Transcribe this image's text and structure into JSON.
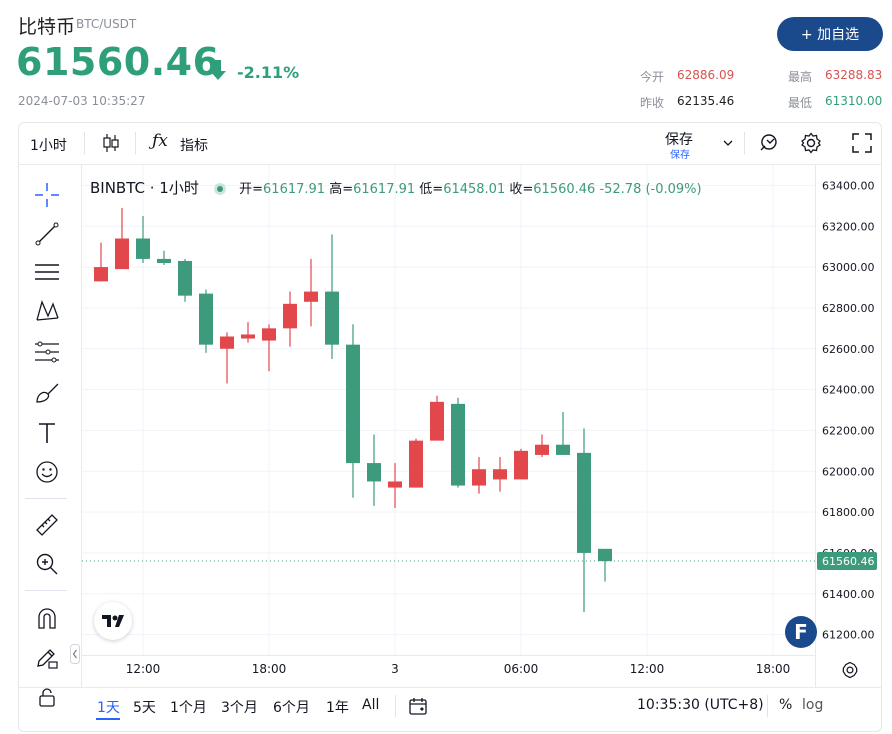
{
  "header": {
    "coin_name": "比特币",
    "pair": "BTC/USDT",
    "price": "61560.46",
    "change_pct": "-2.11%",
    "timestamp": "2024-07-03 10:35:27",
    "follow_label": "+ 加自选"
  },
  "stats": {
    "open_label": "今开",
    "open_value": "62886.09",
    "high_label": "最高",
    "high_value": "63288.83",
    "prev_close_label": "昨收",
    "prev_close_value": "62135.46",
    "low_label": "最低",
    "low_value": "61310.00"
  },
  "toolbar": {
    "interval": "1小时",
    "indicators_label": "指标",
    "save_label": "保存",
    "save_sub_label": "保存"
  },
  "legend": {
    "symbol": "BINBTC · 1小时",
    "open_label": "开=",
    "open": "61617.91",
    "high_label": "高=",
    "high": "61617.91",
    "low_label": "低=",
    "low": "61458.01",
    "close_label": "收=",
    "close": "61560.46",
    "delta": "-52.78 (-0.09%)"
  },
  "colors": {
    "up": "#e2474c",
    "down": "#3d9a7d",
    "accent": "#2962ff",
    "brand": "#1b4a8c"
  },
  "chart_data": {
    "type": "candlestick",
    "ylim": [
      61100,
      63500
    ],
    "y_ticks": [
      63400,
      63200,
      63000,
      62800,
      62600,
      62400,
      62200,
      62000,
      61800,
      61600,
      61400,
      61200
    ],
    "y_tick_labels": [
      "63400.00",
      "63200.00",
      "63000.00",
      "62800.00",
      "62600.00",
      "62400.00",
      "62200.00",
      "62000.00",
      "61800.00",
      "61600.00",
      "61400.00",
      "61200.00"
    ],
    "x_tick_labels": [
      "12:00",
      "18:00",
      "3",
      "06:00",
      "12:00",
      "18:00"
    ],
    "x_tick_index": [
      2,
      8,
      14,
      20,
      26,
      32
    ],
    "current_price_label": "61560.46",
    "current_price": 61560.46,
    "candles": [
      {
        "o": 62930,
        "h": 63120,
        "l": 62930,
        "c": 63000
      },
      {
        "o": 62990,
        "h": 63290,
        "l": 62990,
        "c": 63140
      },
      {
        "o": 63140,
        "h": 63250,
        "l": 63020,
        "c": 63040
      },
      {
        "o": 63040,
        "h": 63080,
        "l": 63010,
        "c": 63020
      },
      {
        "o": 63030,
        "h": 63040,
        "l": 62830,
        "c": 62860
      },
      {
        "o": 62870,
        "h": 62890,
        "l": 62580,
        "c": 62620
      },
      {
        "o": 62600,
        "h": 62680,
        "l": 62430,
        "c": 62660
      },
      {
        "o": 62650,
        "h": 62730,
        "l": 62630,
        "c": 62670
      },
      {
        "o": 62640,
        "h": 62720,
        "l": 62490,
        "c": 62700
      },
      {
        "o": 62700,
        "h": 62880,
        "l": 62610,
        "c": 62820
      },
      {
        "o": 62830,
        "h": 63040,
        "l": 62710,
        "c": 62880
      },
      {
        "o": 62880,
        "h": 63160,
        "l": 62550,
        "c": 62620
      },
      {
        "o": 62620,
        "h": 62720,
        "l": 61870,
        "c": 62040
      },
      {
        "o": 62040,
        "h": 62180,
        "l": 61830,
        "c": 61950
      },
      {
        "o": 61920,
        "h": 62040,
        "l": 61820,
        "c": 61950
      },
      {
        "o": 61920,
        "h": 62160,
        "l": 61920,
        "c": 62150
      },
      {
        "o": 62150,
        "h": 62370,
        "l": 62150,
        "c": 62340
      },
      {
        "o": 62330,
        "h": 62360,
        "l": 61920,
        "c": 61930
      },
      {
        "o": 61930,
        "h": 62070,
        "l": 61890,
        "c": 62010
      },
      {
        "o": 61960,
        "h": 62070,
        "l": 61900,
        "c": 62010
      },
      {
        "o": 61960,
        "h": 62110,
        "l": 61960,
        "c": 62100
      },
      {
        "o": 62080,
        "h": 62180,
        "l": 62070,
        "c": 62130
      },
      {
        "o": 62130,
        "h": 62290,
        "l": 62080,
        "c": 62080
      },
      {
        "o": 62090,
        "h": 62210,
        "l": 61310,
        "c": 61600
      },
      {
        "o": 61620,
        "h": 61620,
        "l": 61460,
        "c": 61560
      }
    ]
  },
  "range_bar": {
    "ranges": [
      "1天",
      "5天",
      "1个月",
      "3个月",
      "6个月",
      "1年",
      "All"
    ],
    "clock": "10:35:30 (UTC+8)",
    "percent_label": "%",
    "log_label": "log"
  },
  "icons": [
    "crosshair-icon",
    "trendline-icon",
    "horizontal-lines-icon",
    "pattern-icon",
    "fib-icon",
    "brush-icon",
    "text-icon",
    "emoji-icon",
    "ruler-icon",
    "zoom-icon",
    "magnet-icon",
    "lock-edit-icon",
    "lock-icon",
    "candles-icon",
    "function-icon",
    "alert-icon",
    "settings-icon",
    "fullscreen-icon",
    "calendar-icon",
    "gear-icon",
    "tv-logo-icon",
    "f-badge-icon",
    "down-arrow-icon"
  ]
}
